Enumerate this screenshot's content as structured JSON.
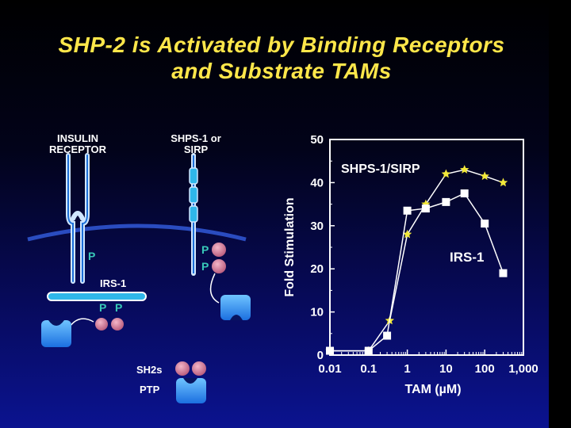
{
  "slide": {
    "title_line1": "SHP-2 is Activated by Binding Receptors",
    "title_line2": "and Substrate TAMs",
    "colors": {
      "title": "#ffe74a",
      "background_top": "#000000",
      "background_bottom": "#0b1390",
      "membrane": "#2a4cc0",
      "phospho": "#38c9b8"
    }
  },
  "diagram": {
    "insulin_receptor": [
      "INSULIN",
      "RECEPTOR"
    ],
    "shps1": [
      "SHPS-1 or",
      "SIRP"
    ],
    "irs1": "IRS-1",
    "phospho": "P",
    "sh2s": "SH2s",
    "ptp": "PTP"
  },
  "chart_data": {
    "type": "line",
    "xscale": "log",
    "xlabel": "TAM (µM)",
    "ylabel": "Fold Stimulation",
    "xlim": [
      0.01,
      1000
    ],
    "ylim": [
      0,
      50
    ],
    "x_ticks": [
      "0.01",
      "0.1",
      "1",
      "10",
      "100",
      "1,000"
    ],
    "y_ticks": [
      "0",
      "10",
      "20",
      "30",
      "40",
      "50"
    ],
    "legend_placement": "inline labels",
    "series": [
      {
        "name": "SHPS-1/SIRP",
        "marker": "star",
        "color": "#f2e83a",
        "label_color": "#ffffff",
        "x": [
          0.01,
          0.1,
          0.35,
          1,
          3,
          10,
          30,
          100,
          300
        ],
        "y": [
          1,
          1,
          8,
          28,
          35,
          42,
          43,
          41.5,
          40
        ]
      },
      {
        "name": "IRS-1",
        "marker": "square",
        "color": "#ffffff",
        "label_color": "#ffffff",
        "x": [
          0.01,
          0.1,
          0.3,
          1,
          3,
          10,
          30,
          100,
          300
        ],
        "y": [
          1,
          1,
          4.5,
          33.5,
          34,
          35.5,
          37.5,
          30.5,
          19
        ]
      }
    ]
  }
}
